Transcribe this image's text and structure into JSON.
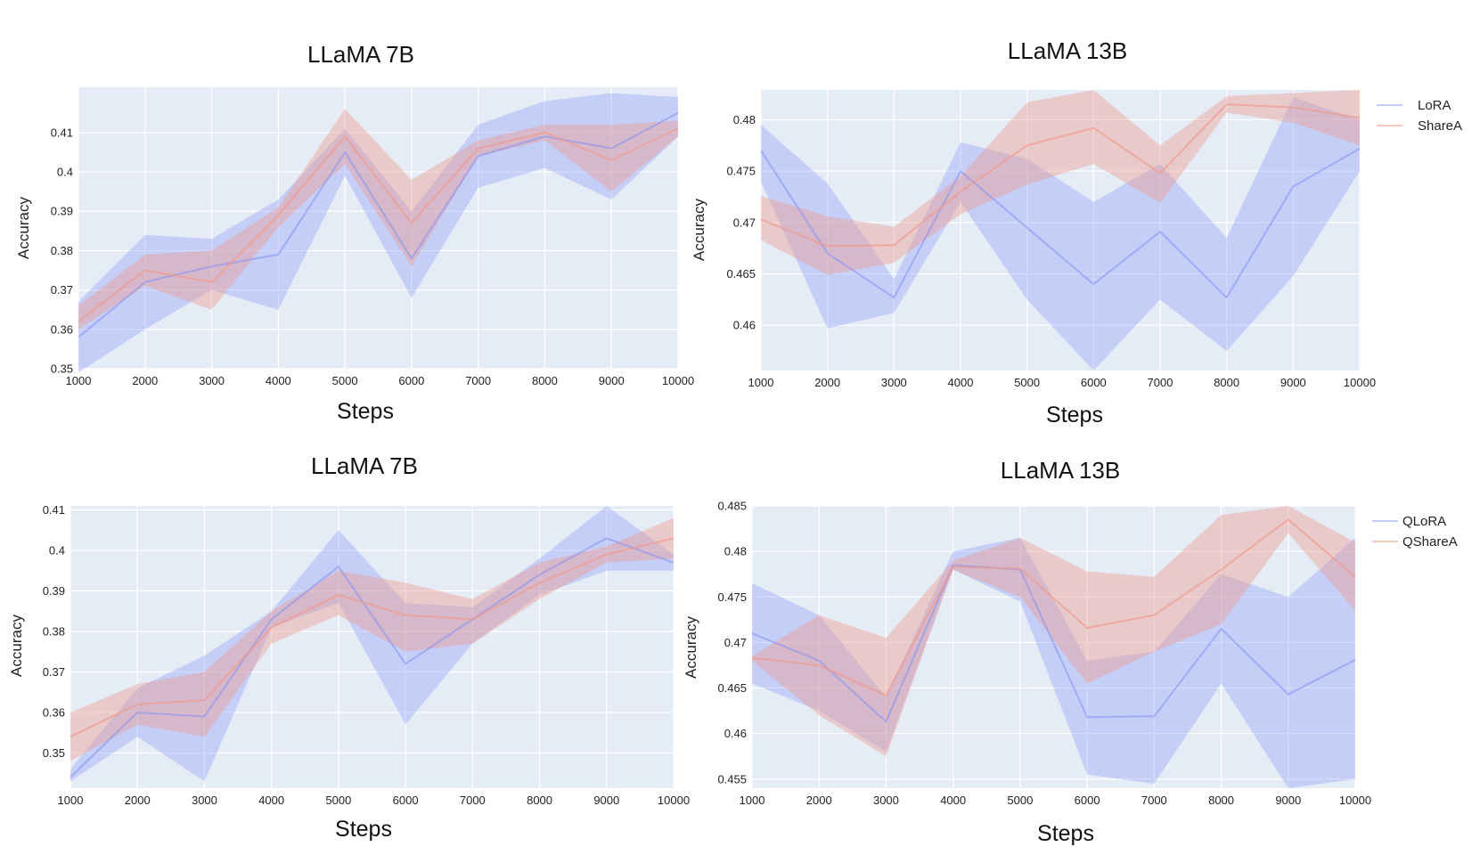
{
  "colors": {
    "plot_bg": "#e5ecf6",
    "grid": "#ffffff",
    "series_a": "#7f8ff5",
    "series_b": "#ef9a8c"
  },
  "chart_data": [
    {
      "type": "line",
      "title": "LLaMA 7B",
      "xlabel": "Steps",
      "ylabel": "Accuracy",
      "x": [
        1000,
        2000,
        3000,
        4000,
        5000,
        6000,
        7000,
        8000,
        9000,
        10000
      ],
      "xlim": [
        1000,
        10000
      ],
      "ylim": [
        0.35,
        0.4215
      ],
      "yticks": [
        0.35,
        0.36,
        0.37,
        0.38,
        0.39,
        0.4,
        0.41
      ],
      "ytick_labels": [
        "0.35",
        "0.36",
        "0.37",
        "0.38",
        "0.39",
        "0.4",
        "0.41"
      ],
      "legend": null,
      "series": [
        {
          "name": "LoRA",
          "color": "#7f8ff5",
          "values": [
            0.358,
            0.372,
            0.376,
            0.379,
            0.405,
            0.378,
            0.404,
            0.409,
            0.406,
            0.415
          ],
          "lower": [
            0.349,
            0.36,
            0.37,
            0.365,
            0.399,
            0.368,
            0.396,
            0.401,
            0.393,
            0.409
          ],
          "upper": [
            0.367,
            0.384,
            0.383,
            0.393,
            0.411,
            0.39,
            0.412,
            0.418,
            0.42,
            0.419
          ]
        },
        {
          "name": "ShareA",
          "color": "#ef9a8c",
          "values": [
            0.362,
            0.375,
            0.372,
            0.389,
            0.409,
            0.387,
            0.406,
            0.41,
            0.403,
            0.411
          ],
          "lower": [
            0.36,
            0.371,
            0.365,
            0.386,
            0.402,
            0.376,
            0.404,
            0.408,
            0.395,
            0.409
          ],
          "upper": [
            0.366,
            0.379,
            0.38,
            0.391,
            0.416,
            0.398,
            0.408,
            0.412,
            0.412,
            0.413
          ]
        }
      ]
    },
    {
      "type": "line",
      "title": "LLaMA 13B",
      "xlabel": "Steps",
      "ylabel": "Accuracy",
      "x": [
        1000,
        2000,
        3000,
        4000,
        5000,
        6000,
        7000,
        8000,
        9000,
        10000
      ],
      "xlim": [
        1000,
        10000
      ],
      "ylim": [
        0.4556,
        0.4829
      ],
      "yticks": [
        0.46,
        0.465,
        0.47,
        0.475,
        0.48
      ],
      "ytick_labels": [
        "0.46",
        "0.465",
        "0.47",
        "0.475",
        "0.48"
      ],
      "legend": {
        "position": "top-right",
        "entries": [
          "LoRA",
          "ShareA"
        ]
      },
      "series": [
        {
          "name": "LoRA",
          "color": "#7f8ff5",
          "values": [
            0.477,
            0.467,
            0.4627,
            0.475,
            0.4695,
            0.464,
            0.4691,
            0.4627,
            0.4735,
            0.4772
          ],
          "lower": [
            0.474,
            0.4597,
            0.4612,
            0.472,
            0.4625,
            0.4556,
            0.4625,
            0.4575,
            0.4648,
            0.475
          ],
          "upper": [
            0.4795,
            0.4738,
            0.4645,
            0.4778,
            0.4762,
            0.472,
            0.4757,
            0.4685,
            0.4822,
            0.48
          ]
        },
        {
          "name": "ShareA",
          "color": "#ef9a8c",
          "values": [
            0.4703,
            0.4677,
            0.4678,
            0.473,
            0.4775,
            0.4792,
            0.4748,
            0.4815,
            0.4812,
            0.4802
          ],
          "lower": [
            0.4683,
            0.4649,
            0.4661,
            0.4708,
            0.4737,
            0.4757,
            0.4719,
            0.4807,
            0.4797,
            0.4775
          ],
          "upper": [
            0.4726,
            0.4706,
            0.4696,
            0.4745,
            0.4817,
            0.4829,
            0.4775,
            0.4823,
            0.4826,
            0.4829
          ]
        }
      ]
    },
    {
      "type": "line",
      "title": "LLaMA 7B",
      "xlabel": "Steps",
      "ylabel": "Accuracy",
      "x": [
        1000,
        2000,
        3000,
        4000,
        5000,
        6000,
        7000,
        8000,
        9000,
        10000
      ],
      "xlim": [
        1000,
        10000
      ],
      "ylim": [
        0.3413,
        0.411
      ],
      "yticks": [
        0.35,
        0.36,
        0.37,
        0.38,
        0.39,
        0.4,
        0.41
      ],
      "ytick_labels": [
        "0.35",
        "0.36",
        "0.37",
        "0.38",
        "0.39",
        "0.4",
        "0.41"
      ],
      "legend": null,
      "series": [
        {
          "name": "QLoRA",
          "color": "#7f8ff5",
          "values": [
            0.344,
            0.36,
            0.359,
            0.383,
            0.396,
            0.372,
            0.383,
            0.394,
            0.403,
            0.397
          ],
          "lower": [
            0.343,
            0.354,
            0.343,
            0.381,
            0.387,
            0.357,
            0.377,
            0.389,
            0.395,
            0.395
          ],
          "upper": [
            0.346,
            0.366,
            0.374,
            0.385,
            0.405,
            0.387,
            0.386,
            0.398,
            0.411,
            0.399
          ]
        },
        {
          "name": "QShareA",
          "color": "#ef9a8c",
          "values": [
            0.354,
            0.362,
            0.363,
            0.381,
            0.389,
            0.384,
            0.383,
            0.392,
            0.399,
            0.403
          ],
          "lower": [
            0.348,
            0.357,
            0.354,
            0.377,
            0.384,
            0.375,
            0.377,
            0.388,
            0.397,
            0.398
          ],
          "upper": [
            0.36,
            0.367,
            0.37,
            0.385,
            0.395,
            0.392,
            0.388,
            0.397,
            0.401,
            0.408
          ]
        }
      ]
    },
    {
      "type": "line",
      "title": "LLaMA 13B",
      "xlabel": "Steps",
      "ylabel": "Accuracy",
      "x": [
        1000,
        2000,
        3000,
        4000,
        5000,
        6000,
        7000,
        8000,
        9000,
        10000
      ],
      "xlim": [
        1000,
        10000
      ],
      "ylim": [
        0.454,
        0.485
      ],
      "yticks": [
        0.455,
        0.46,
        0.465,
        0.47,
        0.475,
        0.48,
        0.485
      ],
      "ytick_labels": [
        "0.455",
        "0.46",
        "0.465",
        "0.47",
        "0.475",
        "0.48",
        "0.485"
      ],
      "legend": {
        "position": "top-right",
        "entries": [
          "QLoRA",
          "QShareA"
        ]
      },
      "series": [
        {
          "name": "QLoRA",
          "color": "#7f8ff5",
          "values": [
            0.471,
            0.468,
            0.4613,
            0.4785,
            0.478,
            0.4618,
            0.4619,
            0.4715,
            0.4643,
            0.4681
          ],
          "lower": [
            0.4655,
            0.4625,
            0.458,
            0.478,
            0.4745,
            0.4555,
            0.4545,
            0.4655,
            0.454,
            0.455
          ],
          "upper": [
            0.4765,
            0.473,
            0.464,
            0.48,
            0.4815,
            0.468,
            0.469,
            0.4775,
            0.475,
            0.4815
          ]
        },
        {
          "name": "QShareA",
          "color": "#ef9a8c",
          "values": [
            0.4683,
            0.4675,
            0.4642,
            0.4783,
            0.4781,
            0.4716,
            0.473,
            0.478,
            0.4835,
            0.4772
          ],
          "lower": [
            0.468,
            0.462,
            0.4575,
            0.478,
            0.475,
            0.4655,
            0.469,
            0.472,
            0.482,
            0.4735
          ],
          "upper": [
            0.4685,
            0.473,
            0.4705,
            0.479,
            0.4815,
            0.4778,
            0.4772,
            0.484,
            0.485,
            0.481
          ]
        }
      ]
    }
  ]
}
